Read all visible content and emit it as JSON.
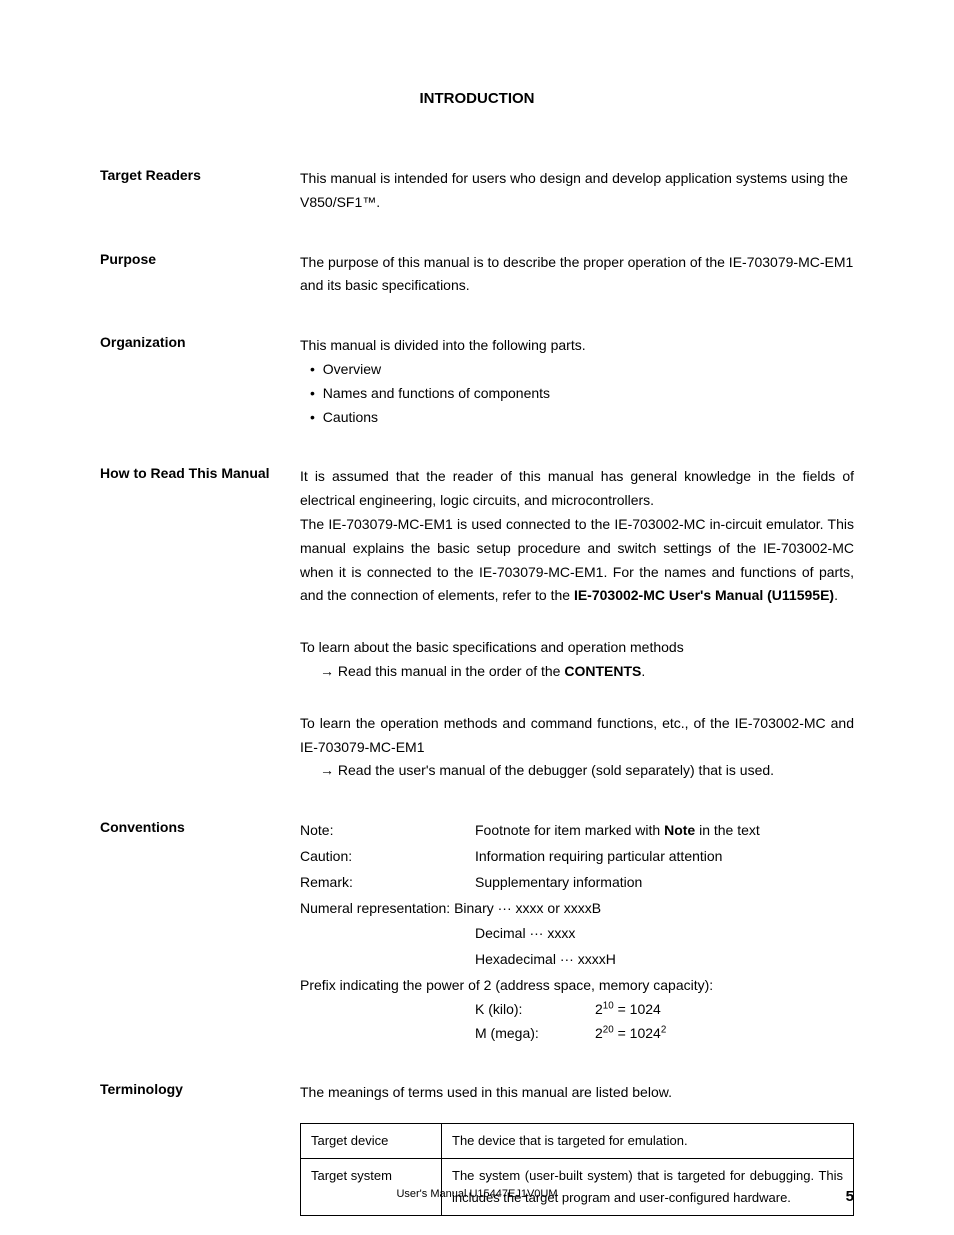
{
  "title": "INTRODUCTION",
  "sections": {
    "target_readers": {
      "label": "Target Readers",
      "text": "This manual is intended for users who design and develop application systems using the V850/SF1™."
    },
    "purpose": {
      "label": "Purpose",
      "text": "The purpose of this manual is to describe the proper operation of the IE-703079-MC-EM1 and its basic specifications."
    },
    "organization": {
      "label": "Organization",
      "intro": "This manual is divided into the following parts.",
      "items": [
        "Overview",
        "Names and functions of components",
        "Cautions"
      ]
    },
    "how_to_read": {
      "label": "How to Read This Manual",
      "p1_pre": "It is assumed that the reader of this manual has general knowledge in the fields of electrical engineering, logic circuits, and microcontrollers.",
      "p1_mid": "The IE-703079-MC-EM1 is used connected to the IE-703002-MC in-circuit emulator. This manual explains the basic setup procedure and switch settings of the IE-703002-MC when it is connected to the IE-703079-MC-EM1.  For the names and functions of parts, and the connection of elements, refer to the ",
      "p1_bold": "IE-703002-MC User's Manual (U11595E)",
      "p1_end": ".",
      "block2_line1": "To learn about the basic specifications and operation methods",
      "block2_arrow": "→ Read this manual in the order of the ",
      "block2_bold": "CONTENTS",
      "block2_end": ".",
      "block3_line1": "To learn the operation methods and command functions, etc., of the IE-703002-MC and IE-703079-MC-EM1",
      "block3_arrow": "→ Read the user's manual of the debugger (sold separately) that is used."
    },
    "conventions": {
      "label": "Conventions",
      "note_label": "Note:",
      "note_val_pre": "Footnote for item marked with ",
      "note_bold": "Note",
      "note_val_post": " in the text",
      "caution_label": "Caution:",
      "caution_val": "Information requiring particular attention",
      "remark_label": "Remark:",
      "remark_val": "Supplementary information",
      "numeral_line": "Numeral representation: Binary ··· xxxx or xxxxB",
      "decimal": "Decimal ··· xxxx",
      "hex": "Hexadecimal ··· xxxxH",
      "prefix_intro": "Prefix indicating the power of 2 (address space, memory capacity):",
      "kilo_label": "K (kilo):",
      "mega_label": "M (mega):"
    },
    "terminology": {
      "label": "Terminology",
      "intro": "The meanings of terms used in this manual are listed below.",
      "rows": [
        {
          "term": "Target device",
          "desc": "The device that is targeted for emulation."
        },
        {
          "term": "Target system",
          "desc": "The system (user-built system) that is targeted for debugging. This includes the target program and user-configured hardware."
        }
      ]
    }
  },
  "footer": "User's Manual  U15447EJ1V0UM",
  "page_number": "5"
}
